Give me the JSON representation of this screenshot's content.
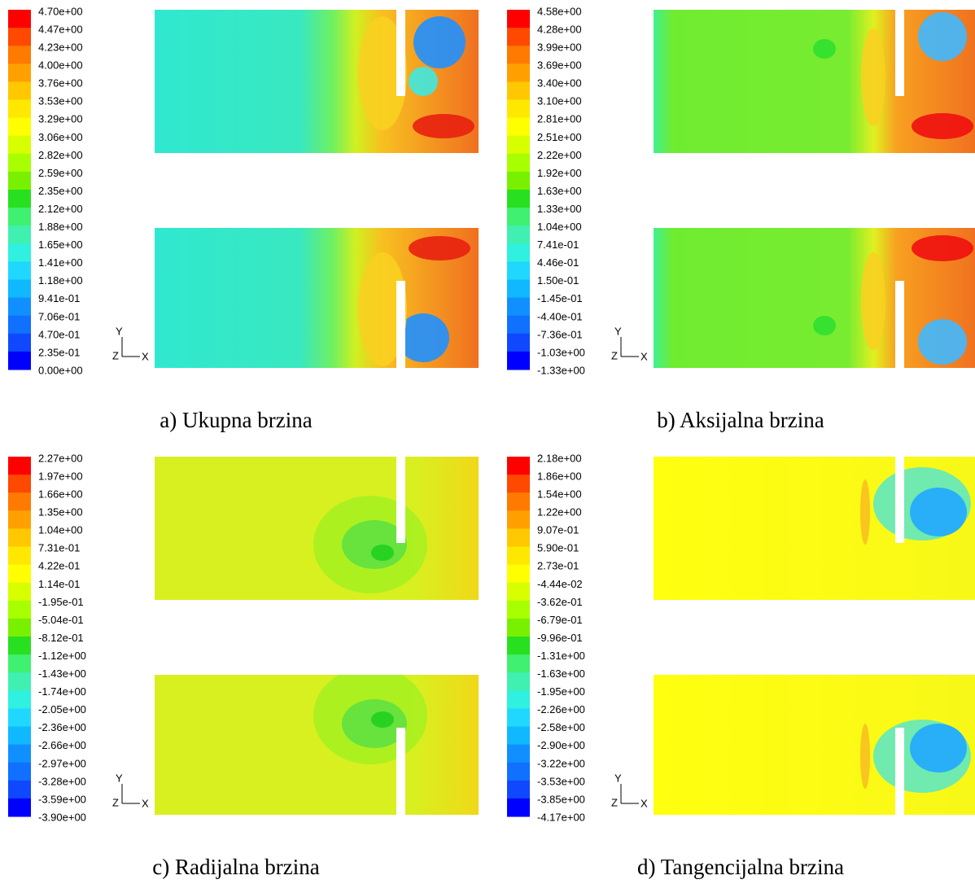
{
  "colorbar_colors": [
    "#ff0000",
    "#ff4800",
    "#ff7a00",
    "#ffa000",
    "#ffc800",
    "#ffe800",
    "#ffff00",
    "#d8ff00",
    "#a8ff00",
    "#78f000",
    "#28e020",
    "#40f070",
    "#40f0b0",
    "#30f0e0",
    "#20d8ff",
    "#10b8ff",
    "#1090ff",
    "#1070ff",
    "#1048ff",
    "#0000ff"
  ],
  "panels": [
    {
      "caption": "a) Ukupna brzina",
      "axes": {
        "y": "Y",
        "z": "Z",
        "x": "X"
      },
      "colorbar_labels": [
        "4.70e+00",
        "4.47e+00",
        "4.23e+00",
        "4.00e+00",
        "3.76e+00",
        "3.53e+00",
        "3.29e+00",
        "3.06e+00",
        "2.82e+00",
        "2.59e+00",
        "2.35e+00",
        "2.12e+00",
        "1.88e+00",
        "1.65e+00",
        "1.41e+00",
        "1.18e+00",
        "9.41e-01",
        "7.06e-01",
        "4.70e-01",
        "2.35e-01",
        "0.00e+00"
      ]
    },
    {
      "caption": "b) Aksijalna brzina",
      "axes": {
        "y": "Y",
        "z": "Z",
        "x": "X"
      },
      "colorbar_labels": [
        "4.58e+00",
        "4.28e+00",
        "3.99e+00",
        "3.69e+00",
        "3.40e+00",
        "3.10e+00",
        "2.81e+00",
        "2.51e+00",
        "2.22e+00",
        "1.92e+00",
        "1.63e+00",
        "1.33e+00",
        "1.04e+00",
        "7.41e-01",
        "4.46e-01",
        "1.50e-01",
        "-1.45e-01",
        "-4.40e-01",
        "-7.36e-01",
        "-1.03e+00",
        "-1.33e+00"
      ]
    },
    {
      "caption": "c) Radijalna brzina",
      "axes": {
        "y": "Y",
        "z": "Z",
        "x": "X"
      },
      "colorbar_labels": [
        "2.27e+00",
        "1.97e+00",
        "1.66e+00",
        "1.35e+00",
        "1.04e+00",
        "7.31e-01",
        "4.22e-01",
        "1.14e-01",
        "-1.95e-01",
        "-5.04e-01",
        "-8.12e-01",
        "-1.12e+00",
        "-1.43e+00",
        "-1.74e+00",
        "-2.05e+00",
        "-2.36e+00",
        "-2.66e+00",
        "-2.97e+00",
        "-3.28e+00",
        "-3.59e+00",
        "-3.90e+00"
      ]
    },
    {
      "caption": "d) Tangencijalna brzina",
      "axes": {
        "y": "Y",
        "z": "Z",
        "x": "X"
      },
      "colorbar_labels": [
        "2.18e+00",
        "1.86e+00",
        "1.54e+00",
        "1.22e+00",
        "9.07e-01",
        "5.90e-01",
        "2.73e-01",
        "-4.44e-02",
        "-3.62e-01",
        "-6.79e-01",
        "-9.96e-01",
        "-1.31e+00",
        "-1.63e+00",
        "-1.95e+00",
        "-2.26e+00",
        "-2.58e+00",
        "-2.90e+00",
        "-3.22e+00",
        "-3.53e+00",
        "-3.85e+00",
        "-4.17e+00"
      ]
    }
  ]
}
